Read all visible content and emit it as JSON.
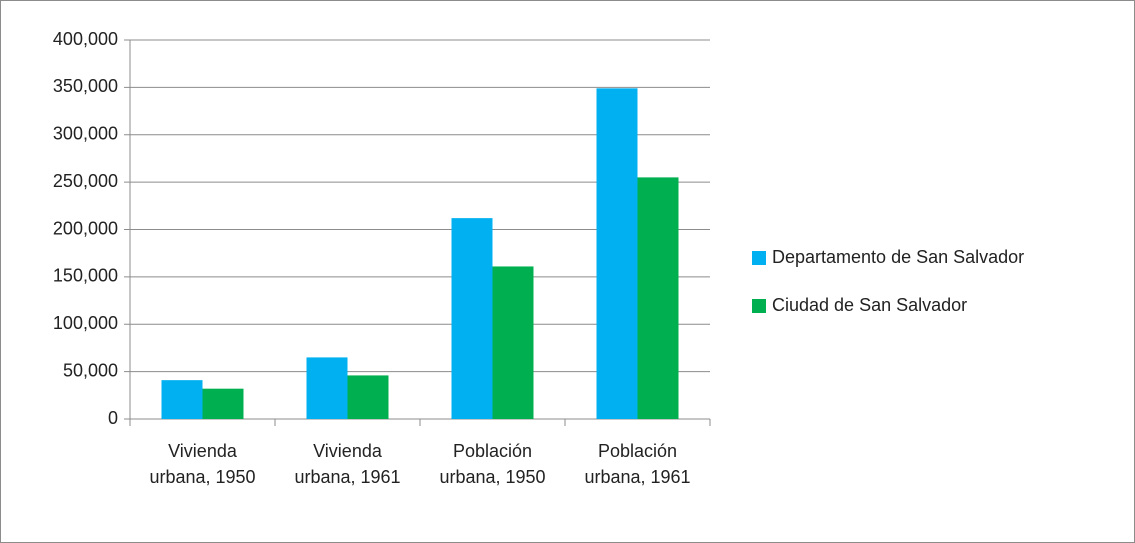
{
  "chart_data": {
    "type": "bar",
    "categories": [
      "Vivienda urbana, 1950",
      "Vivienda urbana, 1961",
      "Población urbana, 1950",
      "Población urbana, 1961"
    ],
    "series": [
      {
        "name": "Departamento de San Salvador",
        "color": "#00b0f0",
        "values": [
          41000,
          65000,
          212000,
          349000
        ]
      },
      {
        "name": "Ciudad de San Salvador",
        "color": "#00b050",
        "values": [
          32000,
          46000,
          161000,
          255000
        ]
      }
    ],
    "ylim": [
      0,
      400000
    ],
    "yticks": [
      0,
      {
        "value": 50000,
        "label": "50,000"
      },
      {
        "value": 100000,
        "label": "100,000"
      },
      {
        "value": 150000,
        "label": "150,000"
      },
      {
        "value": 200000,
        "label": "200,000"
      },
      {
        "value": 250000,
        "label": "250,000"
      },
      {
        "value": 300000,
        "label": "300,000"
      },
      {
        "value": 350000,
        "label": "350,000"
      },
      {
        "value": 400000,
        "label": "400,000"
      }
    ],
    "grid": true,
    "legend": "right"
  }
}
